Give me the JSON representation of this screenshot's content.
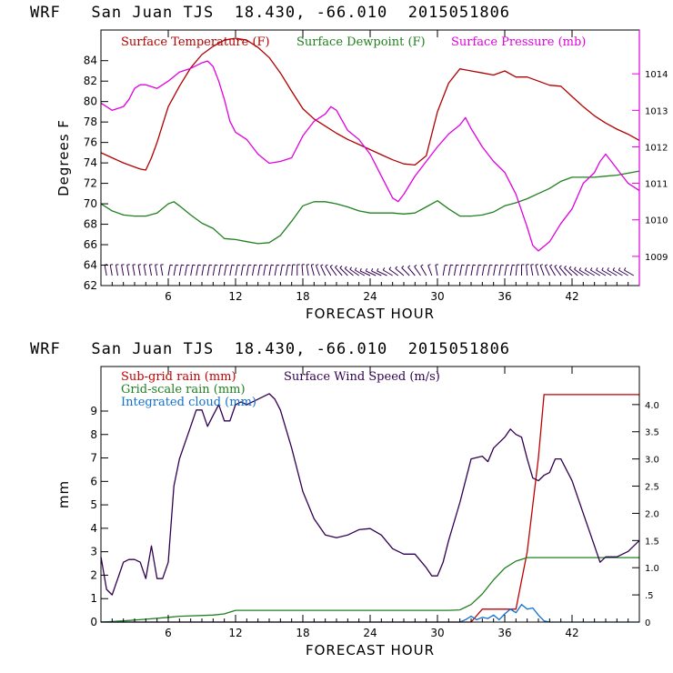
{
  "top_title": "WRF   San Juan TJS  18.430, -66.010  2015051806",
  "bottom_title": "WRF   San Juan TJS  18.430, -66.010  2015051806",
  "colors": {
    "temperature": "#b00000",
    "dewpoint": "#208020",
    "pressure": "#e000e0",
    "wind_speed": "#300050",
    "subgrid": "#c00000",
    "gridscale": "#208020",
    "cloud": "#1070d0"
  },
  "chart_data": [
    {
      "type": "line",
      "title": "WRF   San Juan TJS  18.430, -66.010  2015051806",
      "xlabel": "FORECAST HOUR",
      "ylabel": "Degrees F",
      "xlim": [
        0,
        48
      ],
      "ylim": [
        62,
        87
      ],
      "y2lim": [
        1008.2,
        1015.2
      ],
      "x_ticks": [
        6,
        12,
        18,
        24,
        30,
        36,
        42
      ],
      "y_ticks": [
        62,
        64,
        66,
        68,
        70,
        72,
        74,
        76,
        78,
        80,
        82,
        84
      ],
      "y2_ticks": [
        1009,
        1010,
        1011,
        1012,
        1013,
        1014
      ],
      "y2_tick_labels": [
        "1009",
        "1010",
        "1011",
        "1012",
        "1013",
        "1014"
      ],
      "legend_placement": "top",
      "series": [
        {
          "name": "Surface Temperature (F)",
          "axis": "left",
          "x": [
            0,
            1,
            2,
            3,
            3.5,
            4,
            4.5,
            5,
            6,
            7,
            8,
            9,
            10,
            11,
            12,
            13,
            14,
            15,
            16,
            17,
            18,
            19,
            20,
            21,
            22,
            23,
            24,
            25,
            26,
            27,
            28,
            29,
            30,
            31,
            32,
            33,
            34,
            35,
            36,
            37,
            38,
            39,
            40,
            41,
            42,
            43,
            44,
            45,
            46,
            47,
            48
          ],
          "y": [
            75,
            74.5,
            74,
            73.6,
            73.4,
            73.3,
            74.5,
            76,
            79.5,
            81.5,
            83.3,
            84.6,
            85.4,
            86,
            86.2,
            86,
            85.3,
            84.3,
            82.8,
            81,
            79.3,
            78.3,
            77.6,
            76.9,
            76.3,
            75.8,
            75.3,
            74.8,
            74.3,
            73.9,
            73.8,
            74.7,
            79,
            81.8,
            83.2,
            83,
            82.8,
            82.6,
            83,
            82.4,
            82.4,
            82,
            81.6,
            81.5,
            80.5,
            79.5,
            78.6,
            77.9,
            77.3,
            76.8,
            76.2
          ]
        },
        {
          "name": "Surface Dewpoint (F)",
          "axis": "left",
          "x": [
            0,
            1,
            2,
            3,
            4,
            5,
            6,
            6.5,
            7,
            8,
            9,
            10,
            11,
            12,
            13,
            14,
            15,
            16,
            17,
            18,
            19,
            20,
            21,
            22,
            23,
            24,
            25,
            26,
            27,
            28,
            29,
            30,
            31,
            32,
            33,
            34,
            35,
            36,
            37,
            38,
            39,
            40,
            41,
            42,
            43,
            44,
            45,
            46,
            47,
            48
          ],
          "y": [
            70,
            69.3,
            68.9,
            68.8,
            68.8,
            69.1,
            70,
            70.2,
            69.8,
            68.9,
            68.1,
            67.6,
            66.6,
            66.5,
            66.3,
            66.1,
            66.2,
            66.9,
            68.3,
            69.8,
            70.2,
            70.2,
            70,
            69.7,
            69.3,
            69.1,
            69.1,
            69.1,
            69,
            69.1,
            69.7,
            70.3,
            69.5,
            68.8,
            68.8,
            68.9,
            69.2,
            69.8,
            70.1,
            70.5,
            71,
            71.5,
            72.2,
            72.6,
            72.6,
            72.6,
            72.7,
            72.8,
            73,
            73.2
          ]
        },
        {
          "name": "Surface Pressure (mb)",
          "axis": "right",
          "x": [
            0,
            0.5,
            1,
            1.5,
            2,
            2.5,
            3,
            3.5,
            4,
            5,
            6,
            7,
            8,
            9,
            9.5,
            10,
            10.5,
            11,
            11.5,
            12,
            13,
            14,
            15,
            16,
            17,
            18,
            19,
            20,
            20.5,
            21,
            22,
            23,
            24,
            25,
            26,
            26.5,
            27,
            28,
            29,
            30,
            31,
            32,
            32.5,
            33,
            34,
            35,
            36,
            37,
            38,
            38.5,
            39,
            40,
            41,
            42,
            43,
            44,
            44.5,
            45,
            46,
            46.5,
            47,
            48
          ],
          "y": [
            1013.2,
            1013.1,
            1013.0,
            1013.05,
            1013.1,
            1013.3,
            1013.6,
            1013.7,
            1013.7,
            1013.6,
            1013.8,
            1014.05,
            1014.15,
            1014.3,
            1014.35,
            1014.2,
            1013.8,
            1013.3,
            1012.7,
            1012.4,
            1012.2,
            1011.8,
            1011.55,
            1011.6,
            1011.7,
            1012.3,
            1012.7,
            1012.9,
            1013.1,
            1013.0,
            1012.45,
            1012.2,
            1011.8,
            1011.2,
            1010.6,
            1010.5,
            1010.7,
            1011.2,
            1011.6,
            1012.0,
            1012.35,
            1012.6,
            1012.8,
            1012.5,
            1012.0,
            1011.6,
            1011.3,
            1010.7,
            1009.8,
            1009.3,
            1009.15,
            1009.4,
            1009.9,
            1010.3,
            1011.0,
            1011.3,
            1011.6,
            1011.8,
            1011.4,
            1011.2,
            1011.0,
            1010.8
          ]
        }
      ],
      "wind_barbs": {
        "hours": [
          0.5,
          1,
          1.5,
          2,
          2.5,
          3,
          3.5,
          4,
          4.5,
          5,
          5.5,
          6,
          6.5,
          7,
          7.5,
          8,
          8.5,
          9,
          9.5,
          10,
          10.5,
          11,
          11.5,
          12,
          12.5,
          13,
          13.5,
          14,
          14.5,
          15,
          15.5,
          16,
          16.5,
          17,
          17.5,
          18,
          18.5,
          19,
          19.5,
          20,
          20.5,
          21,
          21.5,
          22,
          22.5,
          23,
          23.5,
          24,
          24.5,
          25,
          25.5,
          26,
          26.5,
          27,
          27.5,
          28,
          28.5,
          29,
          29.5,
          30,
          30.5,
          31,
          31.5,
          32,
          32.5,
          33,
          33.5,
          34,
          34.5,
          35,
          35.5,
          36,
          36.5,
          37,
          37.5,
          38,
          38.5,
          39,
          39.5,
          40,
          40.5,
          41,
          41.5,
          42,
          42.5,
          43,
          43.5,
          44,
          44.5,
          45,
          45.5,
          46,
          46.5,
          47,
          47.5
        ],
        "direction_deg": [
          100,
          100,
          100,
          100,
          100,
          100,
          100,
          100,
          100,
          100,
          100,
          80,
          80,
          80,
          80,
          80,
          80,
          80,
          80,
          80,
          80,
          80,
          80,
          80,
          80,
          80,
          80,
          80,
          80,
          80,
          80,
          80,
          80,
          85,
          90,
          95,
          100,
          105,
          110,
          115,
          120,
          125,
          130,
          135,
          140,
          145,
          150,
          155,
          155,
          155,
          155,
          150,
          145,
          140,
          135,
          130,
          125,
          120,
          110,
          100,
          80,
          80,
          80,
          80,
          80,
          80,
          80,
          80,
          80,
          80,
          80,
          80,
          80,
          85,
          90,
          95,
          100,
          105,
          110,
          115,
          120,
          125,
          130,
          135,
          140,
          145,
          150,
          150,
          150,
          150,
          150,
          150,
          150,
          150,
          150
        ]
      }
    },
    {
      "type": "line",
      "title": "WRF   San Juan TJS  18.430, -66.010  2015051806",
      "xlabel": "FORECAST HOUR",
      "ylabel": "mm",
      "xlim": [
        0,
        48
      ],
      "ylim": [
        0,
        10.9
      ],
      "y2lim": [
        0,
        4.7
      ],
      "x_ticks": [
        6,
        12,
        18,
        24,
        30,
        36,
        42
      ],
      "y_ticks": [
        0,
        1,
        2,
        3,
        4,
        5,
        6,
        7,
        8,
        9
      ],
      "y2_ticks": [
        0,
        0.5,
        1.0,
        1.5,
        2.0,
        2.5,
        3.0,
        3.5,
        4.0
      ],
      "y2_tick_labels": [
        "0",
        ".5",
        "1.0",
        "1.5",
        "2.0",
        "2.5",
        "3.0",
        "3.5",
        "4.0"
      ],
      "legend_placement": "top-left",
      "series": [
        {
          "name": "Sub-grid rain (mm)",
          "axis": "left",
          "x": [
            0,
            33,
            34,
            37,
            38,
            39,
            39.5,
            48
          ],
          "y": [
            0,
            0,
            0.55,
            0.55,
            3,
            7,
            9.7,
            9.7
          ]
        },
        {
          "name": "Grid-scale rain (mm)",
          "axis": "left",
          "x": [
            0,
            2,
            4,
            6,
            7,
            10,
            11,
            12,
            14,
            18,
            22,
            26,
            30,
            31,
            32,
            33,
            34,
            35,
            36,
            37,
            38,
            39,
            42,
            45,
            48
          ],
          "y": [
            0,
            0.05,
            0.12,
            0.2,
            0.25,
            0.3,
            0.35,
            0.5,
            0.5,
            0.5,
            0.5,
            0.5,
            0.5,
            0.5,
            0.52,
            0.75,
            1.2,
            1.8,
            2.3,
            2.6,
            2.75,
            2.75,
            2.75,
            2.75,
            2.75
          ]
        },
        {
          "name": "Integrated cloud (mm)",
          "axis": "left",
          "x": [
            0,
            32,
            32.5,
            33,
            33.5,
            34,
            34.5,
            35,
            35.5,
            36,
            36.5,
            37,
            37.5,
            38,
            38.5,
            39,
            39.5,
            40,
            48
          ],
          "y": [
            0,
            0,
            0.1,
            0.25,
            0.1,
            0.2,
            0.15,
            0.3,
            0.1,
            0.35,
            0.55,
            0.4,
            0.75,
            0.55,
            0.6,
            0.3,
            0.05,
            0,
            0
          ]
        },
        {
          "name": "Surface Wind Speed (m/s)",
          "axis": "right",
          "x": [
            0,
            0.5,
            1,
            1.5,
            2,
            2.5,
            3,
            3.5,
            4,
            4.5,
            5,
            5.5,
            6,
            6.5,
            7,
            7.5,
            8,
            8.5,
            9,
            9.5,
            10,
            10.5,
            11,
            11.5,
            12,
            12.5,
            13,
            13.5,
            14,
            14.5,
            15,
            15.5,
            16,
            17,
            18,
            19,
            20,
            21,
            22,
            23,
            24,
            25,
            26,
            27,
            28,
            29,
            29.5,
            30,
            30.5,
            31,
            32,
            33,
            34,
            34.5,
            35,
            36,
            36.5,
            37,
            37.5,
            38,
            38.5,
            39,
            39.5,
            40,
            40.5,
            41,
            42,
            43,
            44,
            44.5,
            45,
            46,
            47,
            48
          ],
          "y": [
            1.2,
            0.6,
            0.5,
            0.8,
            1.1,
            1.15,
            1.15,
            1.1,
            0.8,
            1.4,
            0.8,
            0.8,
            1.1,
            2.5,
            3.0,
            3.3,
            3.6,
            3.9,
            3.9,
            3.6,
            3.8,
            4.0,
            3.7,
            3.7,
            4.0,
            4.05,
            4.0,
            4.05,
            4.1,
            4.15,
            4.2,
            4.1,
            3.9,
            3.2,
            2.4,
            1.9,
            1.6,
            1.55,
            1.6,
            1.7,
            1.72,
            1.6,
            1.35,
            1.25,
            1.25,
            1.0,
            0.85,
            0.85,
            1.1,
            1.5,
            2.2,
            3.0,
            3.05,
            2.95,
            3.2,
            3.4,
            3.55,
            3.45,
            3.4,
            3.0,
            2.65,
            2.6,
            2.7,
            2.75,
            3.0,
            3.0,
            2.6,
            2.0,
            1.4,
            1.1,
            1.2,
            1.2,
            1.3,
            1.5
          ]
        }
      ]
    }
  ]
}
